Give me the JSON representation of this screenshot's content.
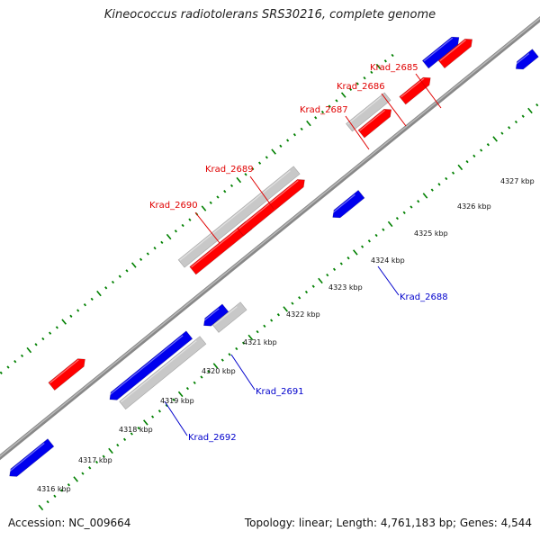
{
  "header": {
    "title": "Kineococcus radiotolerans SRS30216, complete genome"
  },
  "footer": {
    "accession": "Accession: NC_009664",
    "summary": "Topology: linear; Length: 4,761,183 bp; Genes: 4,544"
  },
  "colors": {
    "forward": "#ff0000",
    "reverse": "#0000ee",
    "other": "#c8c8c8",
    "backbone": "#888888",
    "ticks": "#008000"
  },
  "genome_map": {
    "tick_labels": [
      {
        "kbp": 4316,
        "text": "4316 kbp"
      },
      {
        "kbp": 4317,
        "text": "4317 kbp"
      },
      {
        "kbp": 4318,
        "text": "4318 kbp"
      },
      {
        "kbp": 4319,
        "text": "4319 kbp"
      },
      {
        "kbp": 4320,
        "text": "4320 kbp"
      },
      {
        "kbp": 4321,
        "text": "4321 kbp"
      },
      {
        "kbp": 4322,
        "text": "4322 kbp"
      },
      {
        "kbp": 4323,
        "text": "4323 kbp"
      },
      {
        "kbp": 4324,
        "text": "4324 kbp"
      },
      {
        "kbp": 4325,
        "text": "4325 kbp"
      },
      {
        "kbp": 4326,
        "text": "4326 kbp"
      },
      {
        "kbp": 4327,
        "text": "4327 kbp"
      }
    ],
    "gene_labels": [
      {
        "name": "Krad_2685",
        "strand": "forward"
      },
      {
        "name": "Krad_2686",
        "strand": "forward"
      },
      {
        "name": "Krad_2687",
        "strand": "forward"
      },
      {
        "name": "Krad_2689",
        "strand": "forward"
      },
      {
        "name": "Krad_2690",
        "strand": "forward"
      },
      {
        "name": "Krad_2688",
        "strand": "reverse"
      },
      {
        "name": "Krad_2691",
        "strand": "reverse"
      },
      {
        "name": "Krad_2692",
        "strand": "reverse"
      }
    ]
  }
}
